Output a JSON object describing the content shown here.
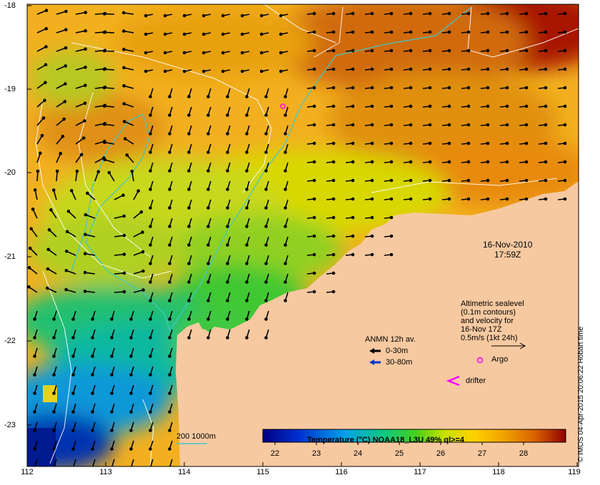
{
  "map": {
    "date": "16-Nov-2010",
    "time": "17:59Z",
    "altimetry_lines": [
      "Altimetric sealevel",
      "(0.1m contours)",
      "and velocity for",
      "16-Nov 17Z",
      "0.5m/s (1kt 24h)"
    ],
    "anmn_title": "ANMN 12h av.",
    "anmn_shallow": "0-30m",
    "anmn_deep": "30-80m",
    "argo_label": "Argo",
    "drifter_label": "drifter",
    "isobath_label": "200  1000m",
    "credit": "© IMOS 04-Apr-2015 20:06:22 Hobart time",
    "land_color": "#f7c9a1",
    "isobath_color": "#40c8c8",
    "argo_color": "#ff00ff",
    "current_arrow_color": "#000000",
    "deep_arrow_color": "#0033cc"
  },
  "axes": {
    "lon_ticks": [
      "112",
      "113",
      "114",
      "115",
      "116",
      "117",
      "118",
      "119"
    ],
    "lat_ticks": [
      "-18",
      "-19",
      "-20",
      "-21",
      "-22",
      "-23"
    ]
  },
  "colorbar": {
    "title": "Temperature (°C) NOAA18_L3U 49% ql>=4",
    "labels": [
      "22",
      "23",
      "24",
      "25",
      "26",
      "27",
      "28"
    ],
    "range": [
      21.5,
      28.8
    ]
  }
}
